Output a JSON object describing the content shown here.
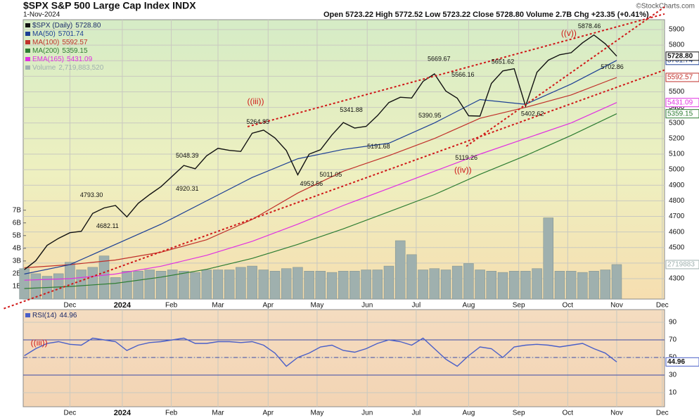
{
  "chart_data": [
    {
      "type": "line",
      "title": "$SPX S&P 500 Large Cap Index INDX",
      "subtitle": "1-Nov-2024",
      "quote": "Open 5723.22  High 5772.52  Low 5723.22  Close 5728.80  Volume 2.7B  Chg +23.35 (+0.41%)",
      "credit": "©StockCharts.com",
      "grid": true,
      "xlim": [
        -0.1,
        56.2
      ],
      "xticks": [
        {
          "value": 4,
          "label": "Dec"
        },
        {
          "value": 8.6,
          "label": "2024",
          "bold": true
        },
        {
          "value": 12.9,
          "label": "Feb"
        },
        {
          "value": 17,
          "label": "Mar"
        },
        {
          "value": 21.4,
          "label": "Apr"
        },
        {
          "value": 25.7,
          "label": "May"
        },
        {
          "value": 30.1,
          "label": "Jun"
        },
        {
          "value": 34.4,
          "label": "Jul"
        },
        {
          "value": 39,
          "label": "Aug"
        },
        {
          "value": 43.4,
          "label": "Sep"
        },
        {
          "value": 47.7,
          "label": "Oct"
        },
        {
          "value": 52,
          "label": "Nov"
        },
        {
          "value": 56,
          "label": "Dec"
        }
      ],
      "ylim": [
        4169,
        5963
      ],
      "yticks": [
        4300,
        4400,
        4500,
        4600,
        4700,
        4800,
        4900,
        5000,
        5100,
        5200,
        5300,
        5400,
        5500,
        5600,
        5700,
        5800,
        5900
      ],
      "y2lim": [
        0,
        22000000000
      ],
      "y2ticks": [
        {
          "value": 1000000000,
          "label": "1B"
        },
        {
          "value": 2000000000,
          "label": "2B"
        },
        {
          "value": 3000000000,
          "label": "3B"
        },
        {
          "value": 4000000000,
          "label": "4B"
        },
        {
          "value": 5000000000,
          "label": "5B"
        },
        {
          "value": 6000000000,
          "label": "6B"
        },
        {
          "value": 7000000000,
          "label": "7B"
        }
      ],
      "series": [
        {
          "name": "$SPX (Daily)",
          "legend_value": "5728.80",
          "color": "#111111",
          "x": [
            0,
            1,
            2,
            3,
            4,
            5,
            6,
            7,
            8,
            9,
            10,
            11,
            12,
            13,
            14,
            15,
            16,
            17,
            18,
            19,
            20,
            21,
            22,
            23,
            24,
            25,
            26,
            27,
            28,
            29,
            30,
            31,
            32,
            33,
            34,
            35,
            36,
            37,
            38,
            39,
            40,
            41,
            42,
            43,
            44,
            45,
            46,
            47,
            48,
            49,
            50,
            51,
            52
          ],
          "values": [
            4358,
            4415,
            4514,
            4559,
            4595,
            4604,
            4719,
            4754,
            4770,
            4697,
            4784,
            4840,
            4891,
            4959,
            5027,
            5006,
            5089,
            5137,
            5124,
            5117,
            5234,
            5254,
            5204,
            5123,
            4967,
            5100,
            5128,
            5223,
            5303,
            5267,
            5278,
            5347,
            5431,
            5465,
            5460,
            5567,
            5615,
            5505,
            5459,
            5346,
            5344,
            5554,
            5634,
            5648,
            5408,
            5626,
            5703,
            5738,
            5751,
            5815,
            5865,
            5808,
            5728.8
          ]
        },
        {
          "name": "MA(50)",
          "legend_value": "5701.74",
          "color": "#1c3f94",
          "x": [
            0,
            4,
            8,
            12,
            16,
            20,
            24,
            28,
            32,
            36,
            40,
            44,
            48,
            52
          ],
          "values": [
            4330,
            4390,
            4520,
            4650,
            4800,
            4950,
            5070,
            5130,
            5170,
            5300,
            5450,
            5420,
            5550,
            5701.74
          ]
        },
        {
          "name": "MA(100)",
          "legend_value": "5592.57",
          "color": "#c0302a",
          "x": [
            0,
            4,
            8,
            12,
            16,
            20,
            24,
            28,
            32,
            36,
            40,
            44,
            48,
            52
          ],
          "values": [
            4370,
            4390,
            4420,
            4470,
            4550,
            4680,
            4850,
            4990,
            5090,
            5200,
            5330,
            5400,
            5480,
            5592.57
          ]
        },
        {
          "name": "MA(200)",
          "legend_value": "5359.15",
          "color": "#2e7d32",
          "x": [
            0,
            4,
            8,
            12,
            16,
            20,
            24,
            28,
            32,
            36,
            40,
            44,
            48,
            52
          ],
          "values": [
            4237,
            4250,
            4270,
            4310,
            4360,
            4430,
            4520,
            4620,
            4730,
            4840,
            4970,
            5090,
            5220,
            5359.15
          ]
        },
        {
          "name": "EMA(165)",
          "legend_value": "5431.09",
          "color": "#e030e0",
          "x": [
            0,
            4,
            8,
            12,
            16,
            20,
            24,
            28,
            32,
            36,
            40,
            44,
            48,
            52
          ],
          "values": [
            4290,
            4300,
            4330,
            4380,
            4450,
            4540,
            4650,
            4770,
            4880,
            4990,
            5100,
            5200,
            5300,
            5431.09
          ]
        },
        {
          "name": "Volume",
          "legend_value": "2,719,883,520",
          "tag_label": "2719883",
          "color": "#9fb0ae",
          "type": "bar",
          "axis": "y2",
          "x": [
            0,
            1,
            2,
            3,
            4,
            5,
            6,
            7,
            8,
            9,
            10,
            11,
            12,
            13,
            14,
            15,
            16,
            17,
            18,
            19,
            20,
            21,
            22,
            23,
            24,
            25,
            26,
            27,
            28,
            29,
            30,
            31,
            32,
            33,
            34,
            35,
            36,
            37,
            38,
            39,
            40,
            41,
            42,
            43,
            44,
            45,
            46,
            47,
            48,
            49,
            50,
            51,
            52
          ],
          "values": [
            2400000000,
            2000000000,
            1800000000,
            2000000000,
            2900000000,
            2300000000,
            2500000000,
            3400000000,
            1700000000,
            2200000000,
            2200000000,
            2300000000,
            2200000000,
            2300000000,
            2200000000,
            2100000000,
            2300000000,
            2300000000,
            2300000000,
            2500000000,
            2600000000,
            2300000000,
            2200000000,
            2400000000,
            2500000000,
            2200000000,
            2200000000,
            2100000000,
            2200000000,
            2200000000,
            2300000000,
            2300000000,
            2600000000,
            4600000000,
            3500000000,
            2300000000,
            2400000000,
            2300000000,
            2600000000,
            2800000000,
            2300000000,
            2200000000,
            2100000000,
            2200000000,
            2200000000,
            2400000000,
            6400000000,
            2200000000,
            2200000000,
            2100000000,
            2200000000,
            2300000000,
            2719883520
          ]
        }
      ],
      "annotations": [
        {
          "label": "4793.30",
          "value": 4793.3,
          "x": 5.9,
          "position": "above"
        },
        {
          "label": "4682.11",
          "value": 4682.11,
          "x": 7.3,
          "position": "below"
        },
        {
          "label": "4920.31",
          "value": 4920.31,
          "x": 14.3,
          "position": "below"
        },
        {
          "label": "5048.39",
          "value": 5048.39,
          "x": 14.3,
          "position": "above"
        },
        {
          "label": "5264.85",
          "value": 5264.85,
          "x": 20.5,
          "position": "above"
        },
        {
          "label": "4953.56",
          "value": 4953.56,
          "x": 25.2,
          "position": "below"
        },
        {
          "label": "5011.05",
          "value": 5011.05,
          "x": 26.9,
          "position": "below"
        },
        {
          "label": "5341.88",
          "value": 5341.88,
          "x": 28.7,
          "position": "above"
        },
        {
          "label": "5191.68",
          "value": 5191.68,
          "x": 31.1,
          "position": "below"
        },
        {
          "label": "5669.67",
          "value": 5669.67,
          "x": 36.4,
          "position": "above"
        },
        {
          "label": "5566.16",
          "value": 5566.16,
          "x": 38.5,
          "position": "above"
        },
        {
          "label": "5390.95",
          "value": 5390.95,
          "x": 35.6,
          "position": "below"
        },
        {
          "label": "5119.26",
          "value": 5119.26,
          "x": 38.8,
          "position": "below"
        },
        {
          "label": "5651.62",
          "value": 5651.62,
          "x": 42,
          "position": "above"
        },
        {
          "label": "5402.62",
          "value": 5402.62,
          "x": 44.6,
          "position": "below"
        },
        {
          "label": "5878.46",
          "value": 5878.46,
          "x": 49.6,
          "position": "above"
        },
        {
          "label": "5702.86",
          "value": 5702.86,
          "x": 51.6,
          "position": "below"
        }
      ],
      "wave_labels": [
        {
          "text": "((iii))",
          "x": 20.3,
          "y": 5435,
          "color": "#d01818"
        },
        {
          "text": "((iv))",
          "x": 38.5,
          "y": 4995,
          "color": "#d01818"
        },
        {
          "text": "((v))",
          "x": 47.8,
          "y": 5873,
          "color": "#d01818"
        }
      ],
      "trendlines": [
        {
          "x": [
            19.6,
            56.2
          ],
          "y": [
            5276,
            6000
          ],
          "color": "#d01818"
        },
        {
          "x": [
            -1.8,
            56.2
          ],
          "y": [
            4108,
            5640
          ],
          "color": "#d01818"
        },
        {
          "x": [
            38.8,
            56.2
          ],
          "y": [
            5150,
            6045
          ],
          "color": "#d01818"
        }
      ]
    },
    {
      "type": "line",
      "grid": true,
      "xlim": [
        -0.1,
        56.2
      ],
      "xticks": [
        {
          "value": 4,
          "label": "Dec"
        },
        {
          "value": 8.6,
          "label": "2024",
          "bold": true
        },
        {
          "value": 12.9,
          "label": "Feb"
        },
        {
          "value": 17,
          "label": "Mar"
        },
        {
          "value": 21.4,
          "label": "Apr"
        },
        {
          "value": 25.7,
          "label": "May"
        },
        {
          "value": 30.1,
          "label": "Jun"
        },
        {
          "value": 34.4,
          "label": "Jul"
        },
        {
          "value": 39,
          "label": "Aug"
        },
        {
          "value": 43.4,
          "label": "Sep"
        },
        {
          "value": 47.7,
          "label": "Oct"
        },
        {
          "value": 52,
          "label": "Nov"
        },
        {
          "value": 56,
          "label": "Dec"
        }
      ],
      "ylim": [
        -6,
        104.4
      ],
      "yticks": [
        10,
        30,
        50,
        70,
        90
      ],
      "hlines": [
        {
          "value": 70,
          "style": "solid"
        },
        {
          "value": 50,
          "style": "dashdot"
        },
        {
          "value": 30,
          "style": "solid"
        }
      ],
      "series": [
        {
          "name": "RSI(14)",
          "legend_value": "44.96",
          "color": "#4a5fc8",
          "x": [
            0,
            1,
            2,
            3,
            4,
            5,
            6,
            7,
            8,
            9,
            10,
            11,
            12,
            13,
            14,
            15,
            16,
            17,
            18,
            19,
            20,
            21,
            22,
            23,
            24,
            25,
            26,
            27,
            28,
            29,
            30,
            31,
            32,
            33,
            34,
            35,
            36,
            37,
            38,
            39,
            40,
            41,
            42,
            43,
            44,
            45,
            46,
            47,
            48,
            49,
            50,
            51,
            52
          ],
          "values": [
            52,
            60,
            66,
            68,
            65,
            64,
            72,
            70,
            68,
            58,
            64,
            67,
            68,
            70,
            72,
            66,
            66,
            68,
            68,
            67,
            68,
            64,
            55,
            40,
            50,
            55,
            62,
            64,
            58,
            56,
            60,
            66,
            70,
            68,
            64,
            72,
            60,
            48,
            40,
            52,
            62,
            60,
            50,
            62,
            64,
            65,
            64,
            62,
            64,
            66,
            60,
            55,
            44.96
          ]
        }
      ],
      "wave_labels": [
        {
          "text": "((iii))",
          "x": 1.3,
          "y": 66,
          "color": "#d01818"
        }
      ]
    }
  ]
}
